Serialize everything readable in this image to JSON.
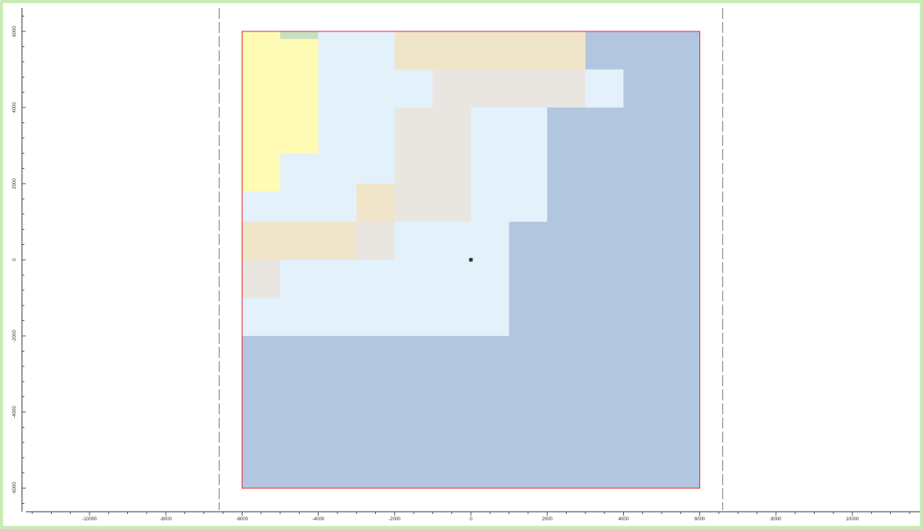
{
  "chart_data": {
    "type": "map",
    "x_axis": {
      "range": [
        -11800,
        11500
      ],
      "major_step": 2000,
      "minor_step": 500,
      "tick_labels": [
        "-10000",
        "-8000",
        "-6000",
        "-4000",
        "-2000",
        "0",
        "2000",
        "4000",
        "6000",
        "8000",
        "10000"
      ]
    },
    "y_axis": {
      "range": [
        -6600,
        6600
      ],
      "major_step": 2000,
      "minor_step": 400,
      "tick_labels": [
        "6000",
        "4000",
        "2000",
        "0",
        "-2000",
        "-4000",
        "-6000"
      ]
    },
    "boundary": {
      "x": [
        -6000,
        6000
      ],
      "y": [
        -6000,
        6000
      ],
      "color": "#e8262b"
    },
    "guide_lines": {
      "x": [
        -6600,
        6600
      ],
      "style": "dashed",
      "color": "#777777"
    },
    "center_marker": {
      "x": 0,
      "y": 0
    },
    "background_color": "#b3c6df",
    "regions": [
      {
        "label": "light-blue",
        "color": "#e3f1fb",
        "polygon": [
          [
            -6000,
            1000
          ],
          [
            -6000,
            2000
          ],
          [
            -5000,
            2000
          ],
          [
            -5000,
            6000
          ],
          [
            3000,
            6000
          ],
          [
            3000,
            5000
          ],
          [
            4000,
            5000
          ],
          [
            4000,
            6000
          ],
          [
            4000,
            4000
          ],
          [
            2000,
            4000
          ],
          [
            2000,
            1000
          ],
          [
            1000,
            1000
          ],
          [
            1000,
            -2000
          ],
          [
            -6000,
            -2000
          ]
        ]
      },
      {
        "label": "pale-yellow",
        "color": "#fffbb4",
        "polygon": [
          [
            -6000,
            1800
          ],
          [
            -5000,
            1800
          ],
          [
            -5000,
            2800
          ],
          [
            -4000,
            2800
          ],
          [
            -4000,
            6000
          ],
          [
            -6000,
            6000
          ]
        ]
      },
      {
        "label": "tan",
        "color": "#f0e5c8",
        "polygon": [
          [
            -6000,
            0
          ],
          [
            -3000,
            0
          ],
          [
            -3000,
            1000
          ],
          [
            -6000,
            1000
          ]
        ]
      },
      {
        "label": "tan",
        "color": "#f0e5c8",
        "polygon": [
          [
            -3000,
            1000
          ],
          [
            -2000,
            1000
          ],
          [
            -2000,
            2000
          ],
          [
            -3000,
            2000
          ]
        ]
      },
      {
        "label": "tan",
        "color": "#f0e5c8",
        "polygon": [
          [
            -2000,
            2000
          ],
          [
            -1000,
            2000
          ],
          [
            -1000,
            4000
          ],
          [
            -2000,
            4000
          ]
        ]
      },
      {
        "label": "tan",
        "color": "#f0e5c8",
        "polygon": [
          [
            -2000,
            5000
          ],
          [
            3000,
            5000
          ],
          [
            3000,
            6000
          ],
          [
            -2000,
            6000
          ]
        ]
      },
      {
        "label": "light-gray",
        "color": "#e9e6e1",
        "polygon": [
          [
            -6000,
            -1000
          ],
          [
            -5000,
            -1000
          ],
          [
            -5000,
            0
          ],
          [
            -6000,
            0
          ]
        ]
      },
      {
        "label": "light-gray",
        "color": "#e9e6e1",
        "polygon": [
          [
            -3000,
            0
          ],
          [
            -2000,
            0
          ],
          [
            -2000,
            1000
          ],
          [
            -3000,
            1000
          ]
        ]
      },
      {
        "label": "light-gray",
        "color": "#e9e6e1",
        "polygon": [
          [
            -2000,
            1000
          ],
          [
            0,
            1000
          ],
          [
            0,
            4000
          ],
          [
            -2000,
            4000
          ]
        ]
      },
      {
        "label": "light-gray",
        "color": "#e9e6e1",
        "polygon": [
          [
            -1000,
            4000
          ],
          [
            3000,
            4000
          ],
          [
            3000,
            5000
          ],
          [
            -1000,
            5000
          ]
        ]
      },
      {
        "label": "green-sliver",
        "color": "#c8dfc0",
        "polygon": [
          [
            -5000,
            5800
          ],
          [
            -4000,
            5800
          ],
          [
            -4000,
            6000
          ],
          [
            -5000,
            6000
          ]
        ]
      }
    ]
  }
}
